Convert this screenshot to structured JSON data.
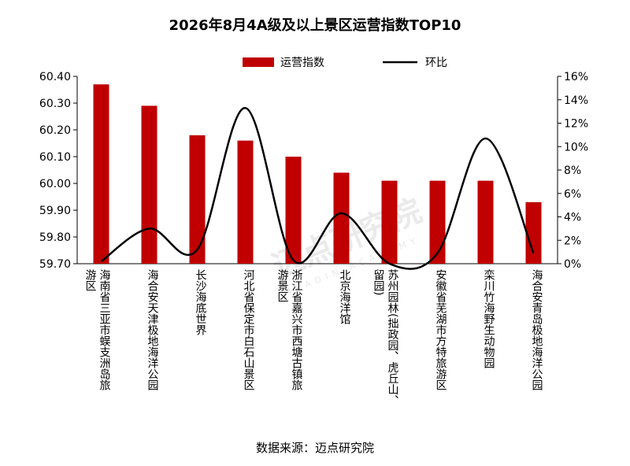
{
  "chart_data": {
    "type": "bar",
    "title": "2026年8月4A级及以上景区运营指数TOP10",
    "categories": [
      [
        "海南省三亚市蜈支洲岛旅",
        "游区"
      ],
      [
        "海合安天津极地海洋公园"
      ],
      [
        "长沙海底世界"
      ],
      [
        "河北省保定市白石山景区"
      ],
      [
        "浙江省嘉兴市西塘古镇旅",
        "游景区"
      ],
      [
        "北京海洋馆"
      ],
      [
        "苏州园林(拙政园、虎丘山、",
        "留园)"
      ],
      [
        "安徽省芜湖市方特旅游区"
      ],
      [
        "栾川竹海野生动物园"
      ],
      [
        "海合安青岛极地海洋公园"
      ]
    ],
    "series": [
      {
        "name": "运营指数",
        "type": "bar",
        "axis": "left",
        "color": "#c00000",
        "values": [
          60.37,
          60.29,
          60.18,
          60.16,
          60.1,
          60.04,
          60.01,
          60.01,
          60.01,
          59.93
        ]
      },
      {
        "name": "环比",
        "type": "line",
        "axis": "right",
        "color": "#000000",
        "values": [
          0.2,
          3.0,
          1.2,
          13.3,
          0.3,
          4.3,
          0.0,
          0.9,
          10.7,
          0.9
        ]
      }
    ],
    "y_left": {
      "min": 59.7,
      "max": 60.4,
      "step": 0.1,
      "ticks": [
        "59.70",
        "59.80",
        "59.90",
        "60.00",
        "60.10",
        "60.20",
        "60.30",
        "60.40"
      ]
    },
    "y_right": {
      "min": 0,
      "max": 16,
      "step": 2,
      "ticks": [
        "0%",
        "2%",
        "4%",
        "6%",
        "8%",
        "10%",
        "12%",
        "14%",
        "16%"
      ]
    },
    "legend": {
      "position": "top"
    },
    "grid": false
  },
  "footer": {
    "source": "数据来源：迈点研究院"
  },
  "watermark": {
    "text": "迈点研究院",
    "sub": "MEADIN ACADEMY"
  }
}
